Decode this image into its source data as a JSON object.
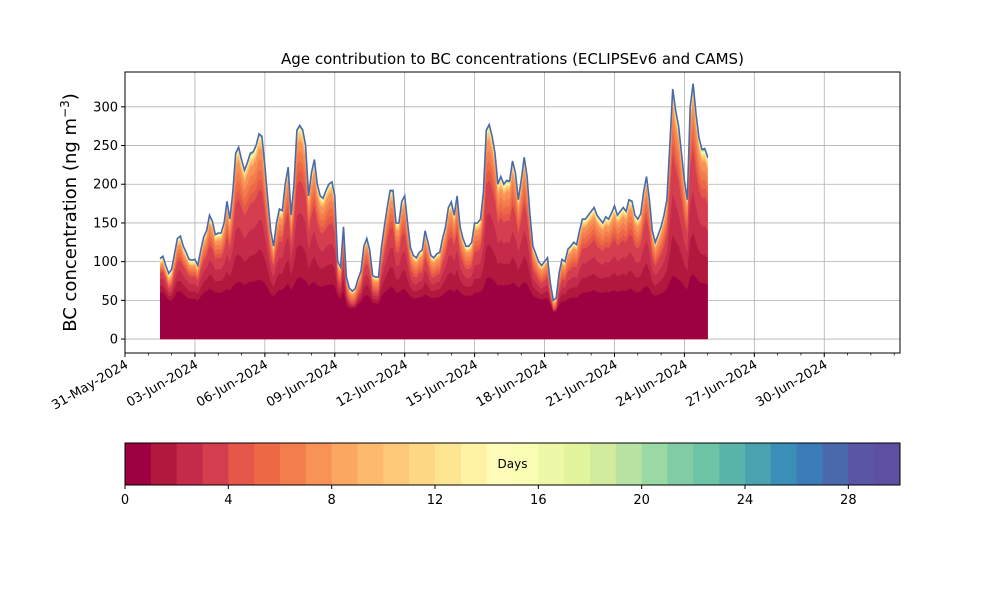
{
  "chart_data": {
    "type": "area",
    "title": "Age contribution to BC concentrations (ECLIPSEv6 and CAMS)",
    "ylabel": "BC concentration (ng m",
    "ylabel_sup": "−3",
    "ylabel_close": ")",
    "xlabel": "",
    "ylim": [
      -18,
      345
    ],
    "yticks": [
      0,
      50,
      100,
      150,
      200,
      250,
      300
    ],
    "grid": true,
    "x_tick_labels": [
      "31-May-2024",
      "03-Jun-2024",
      "06-Jun-2024",
      "09-Jun-2024",
      "12-Jun-2024",
      "15-Jun-2024",
      "18-Jun-2024",
      "21-Jun-2024",
      "24-Jun-2024",
      "27-Jun-2024",
      "30-Jun-2024"
    ],
    "x_tick_day_numbers": [
      31,
      3,
      6,
      9,
      12,
      15,
      18,
      21,
      24,
      27,
      30
    ],
    "x_range_dates": [
      "2024-05-31T00:00",
      "2024-07-03T06:00"
    ],
    "series_start": "2024-06-01T12:00",
    "series_step_hours": 3,
    "total": [
      104,
      107,
      95,
      85,
      90,
      110,
      130,
      133,
      120,
      112,
      103,
      102,
      103,
      95,
      115,
      132,
      140,
      160,
      152,
      135,
      137,
      137,
      150,
      178,
      155,
      190,
      240,
      248,
      232,
      218,
      228,
      240,
      242,
      250,
      265,
      262,
      225,
      180,
      140,
      120,
      150,
      168,
      166,
      200,
      222,
      160,
      200,
      270,
      276,
      270,
      250,
      185,
      215,
      232,
      200,
      185,
      182,
      192,
      200,
      203,
      185,
      100,
      93,
      145,
      80,
      66,
      62,
      65,
      78,
      88,
      120,
      130,
      115,
      82,
      80,
      80,
      118,
      145,
      170,
      192,
      192,
      150,
      150,
      178,
      185,
      150,
      118,
      108,
      105,
      112,
      115,
      140,
      125,
      108,
      105,
      110,
      112,
      130,
      145,
      170,
      177,
      160,
      185,
      145,
      130,
      120,
      120,
      125,
      150,
      150,
      155,
      190,
      270,
      277,
      262,
      240,
      200,
      210,
      200,
      205,
      204,
      230,
      215,
      180,
      205,
      235,
      210,
      160,
      120,
      110,
      100,
      95,
      100,
      105,
      72,
      50,
      53,
      85,
      103,
      100,
      116,
      120,
      125,
      122,
      140,
      155,
      155,
      160,
      165,
      170,
      160,
      155,
      150,
      158,
      155,
      163,
      172,
      160,
      165,
      170,
      165,
      180,
      178,
      160,
      155,
      162,
      190,
      210,
      180,
      140,
      125,
      135,
      145,
      160,
      180,
      250,
      323,
      295,
      275,
      240,
      205,
      180,
      300,
      330,
      290,
      260,
      245,
      246,
      235
    ],
    "layers": {
      "1": [
        60,
        60,
        55,
        50,
        50,
        55,
        62,
        62,
        58,
        55,
        52,
        52,
        52,
        50,
        55,
        60,
        62,
        65,
        63,
        60,
        60,
        60,
        62,
        65,
        63,
        68,
        72,
        74,
        73,
        70,
        72,
        74,
        74,
        75,
        77,
        76,
        72,
        66,
        58,
        55,
        60,
        64,
        63,
        68,
        72,
        63,
        70,
        78,
        80,
        78,
        76,
        68,
        72,
        74,
        70,
        68,
        68,
        70,
        70,
        71,
        68,
        55,
        52,
        62,
        45,
        40,
        40,
        40,
        45,
        48,
        55,
        57,
        54,
        47,
        46,
        46,
        55,
        60,
        63,
        67,
        67,
        60,
        60,
        64,
        65,
        60,
        55,
        53,
        52,
        54,
        54,
        58,
        56,
        53,
        53,
        54,
        54,
        57,
        60,
        63,
        64,
        61,
        65,
        60,
        57,
        56,
        56,
        56,
        60,
        60,
        61,
        66,
        78,
        80,
        78,
        74,
        69,
        70,
        69,
        70,
        70,
        73,
        71,
        66,
        70,
        74,
        71,
        63,
        56,
        54,
        52,
        51,
        52,
        53,
        45,
        35,
        36,
        44,
        49,
        48,
        52,
        53,
        54,
        53,
        57,
        60,
        60,
        61,
        62,
        63,
        61,
        60,
        60,
        61,
        60,
        62,
        63,
        61,
        62,
        63,
        62,
        65,
        64,
        61,
        60,
        62,
        66,
        69,
        65,
        58,
        56,
        57,
        59,
        61,
        65,
        74,
        82,
        80,
        77,
        74,
        68,
        64,
        80,
        84,
        79,
        74,
        72,
        72,
        70
      ],
      "4": [
        85,
        87,
        77,
        65,
        68,
        85,
        100,
        102,
        94,
        88,
        82,
        80,
        81,
        75,
        90,
        101,
        107,
        121,
        116,
        104,
        105,
        105,
        114,
        133,
        117,
        140,
        175,
        181,
        170,
        160,
        166,
        175,
        177,
        182,
        193,
        191,
        165,
        133,
        105,
        92,
        113,
        126,
        125,
        150,
        164,
        120,
        150,
        200,
        205,
        200,
        185,
        138,
        160,
        172,
        150,
        138,
        136,
        143,
        148,
        150,
        137,
        77,
        71,
        108,
        60,
        49,
        46,
        48,
        58,
        66,
        91,
        98,
        87,
        62,
        60,
        60,
        89,
        109,
        127,
        143,
        143,
        112,
        112,
        133,
        138,
        112,
        89,
        81,
        79,
        85,
        86,
        105,
        94,
        81,
        79,
        83,
        84,
        98,
        109,
        127,
        132,
        120,
        139,
        109,
        98,
        90,
        90,
        94,
        113,
        113,
        117,
        143,
        200,
        205,
        194,
        178,
        150,
        157,
        150,
        153,
        152,
        172,
        160,
        135,
        153,
        175,
        157,
        120,
        90,
        83,
        76,
        72,
        76,
        79,
        54,
        38,
        40,
        64,
        77,
        75,
        87,
        90,
        94,
        92,
        105,
        117,
        117,
        120,
        124,
        128,
        120,
        117,
        113,
        119,
        117,
        123,
        130,
        120,
        124,
        128,
        124,
        135,
        133,
        120,
        117,
        122,
        143,
        157,
        135,
        105,
        94,
        102,
        109,
        120,
        135,
        188,
        240,
        220,
        204,
        178,
        152,
        134,
        223,
        245,
        215,
        193,
        182,
        183,
        175
      ],
      "8": [
        95,
        98,
        87,
        75,
        80,
        100,
        120,
        122,
        110,
        103,
        95,
        94,
        95,
        87,
        106,
        122,
        130,
        148,
        141,
        125,
        127,
        127,
        139,
        165,
        144,
        176,
        222,
        230,
        215,
        202,
        211,
        222,
        224,
        232,
        246,
        243,
        209,
        167,
        130,
        111,
        139,
        156,
        154,
        186,
        206,
        148,
        185,
        250,
        256,
        250,
        232,
        172,
        200,
        215,
        185,
        172,
        169,
        178,
        186,
        189,
        172,
        93,
        86,
        134,
        74,
        61,
        57,
        60,
        72,
        82,
        111,
        121,
        107,
        76,
        74,
        74,
        110,
        135,
        158,
        178,
        178,
        140,
        140,
        166,
        172,
        140,
        110,
        101,
        98,
        104,
        107,
        130,
        116,
        101,
        98,
        102,
        104,
        121,
        135,
        158,
        164,
        149,
        172,
        135,
        121,
        112,
        112,
        116,
        140,
        140,
        144,
        177,
        251,
        257,
        243,
        223,
        186,
        195,
        186,
        191,
        190,
        214,
        200,
        168,
        191,
        219,
        195,
        149,
        112,
        102,
        93,
        88,
        93,
        98,
        67,
        46,
        49,
        79,
        96,
        93,
        108,
        112,
        117,
        114,
        130,
        144,
        144,
        149,
        153,
        158,
        149,
        144,
        140,
        147,
        144,
        151,
        160,
        149,
        153,
        158,
        153,
        167,
        166,
        149,
        144,
        151,
        177,
        196,
        168,
        130,
        116,
        126,
        135,
        149,
        168,
        232,
        300,
        275,
        256,
        223,
        191,
        168,
        279,
        307,
        270,
        242,
        228,
        229,
        219
      ],
      "12": [
        100,
        103,
        91,
        81,
        86,
        106,
        126,
        129,
        116,
        108,
        99,
        98,
        99,
        91,
        111,
        128,
        136,
        155,
        147,
        131,
        133,
        133,
        146,
        173,
        151,
        185,
        233,
        241,
        225,
        212,
        222,
        233,
        235,
        243,
        258,
        255,
        219,
        175,
        136,
        116,
        146,
        163,
        161,
        195,
        216,
        155,
        195,
        263,
        269,
        263,
        243,
        180,
        209,
        226,
        195,
        180,
        177,
        187,
        195,
        198,
        180,
        97,
        90,
        141,
        78,
        64,
        60,
        63,
        76,
        86,
        116,
        126,
        111,
        80,
        78,
        78,
        115,
        141,
        165,
        187,
        187,
        146,
        146,
        173,
        180,
        146,
        115,
        105,
        102,
        109,
        111,
        136,
        121,
        105,
        102,
        107,
        109,
        126,
        141,
        165,
        172,
        155,
        180,
        141,
        126,
        116,
        116,
        121,
        146,
        146,
        151,
        185,
        263,
        270,
        255,
        233,
        195,
        204,
        195,
        199,
        198,
        224,
        209,
        175,
        199,
        229,
        204,
        155,
        116,
        107,
        97,
        92,
        97,
        102,
        70,
        48,
        51,
        82,
        100,
        97,
        113,
        116,
        121,
        118,
        136,
        151,
        151,
        155,
        160,
        165,
        155,
        151,
        146,
        153,
        151,
        158,
        167,
        155,
        160,
        165,
        160,
        175,
        173,
        155,
        151,
        158,
        185,
        204,
        175,
        136,
        121,
        131,
        141,
        155,
        175,
        243,
        314,
        287,
        267,
        233,
        199,
        175,
        292,
        321,
        282,
        253,
        238,
        239,
        228
      ],
      "20": [
        103,
        106,
        94,
        84,
        89,
        109,
        129,
        132,
        119,
        111,
        102,
        101,
        102,
        94,
        114,
        131,
        139,
        159,
        151,
        134,
        136,
        136,
        149,
        177,
        154,
        189,
        238,
        246,
        230,
        216,
        226,
        238,
        240,
        248,
        263,
        260,
        223,
        179,
        139,
        119,
        149,
        167,
        165,
        199,
        220,
        159,
        199,
        268,
        274,
        268,
        248,
        184,
        213,
        230,
        199,
        184,
        181,
        191,
        199,
        202,
        184,
        99,
        92,
        144,
        79,
        65,
        61,
        64,
        77,
        87,
        119,
        129,
        114,
        81,
        79,
        79,
        117,
        144,
        169,
        190,
        190,
        149,
        149,
        177,
        184,
        149,
        117,
        107,
        104,
        111,
        114,
        139,
        124,
        107,
        104,
        109,
        111,
        129,
        144,
        169,
        176,
        159,
        184,
        144,
        129,
        119,
        119,
        124,
        149,
        149,
        154,
        189,
        268,
        275,
        260,
        238,
        199,
        208,
        199,
        203,
        202,
        228,
        213,
        179,
        203,
        233,
        208,
        159,
        119,
        109,
        99,
        94,
        99,
        104,
        71,
        49,
        52,
        84,
        102,
        99,
        115,
        119,
        124,
        121,
        139,
        154,
        154,
        159,
        164,
        169,
        159,
        154,
        149,
        157,
        154,
        162,
        171,
        159,
        164,
        169,
        164,
        179,
        177,
        159,
        154,
        161,
        189,
        208,
        179,
        139,
        124,
        134,
        144,
        159,
        179,
        248,
        320,
        292,
        272,
        238,
        203,
        179,
        297,
        327,
        287,
        258,
        243,
        244,
        233
      ]
    },
    "layer_ages_days": [
      1,
      4,
      8,
      12,
      20,
      30
    ],
    "colorbar": {
      "label": "Days",
      "min": 0,
      "max": 30,
      "ticks": [
        0,
        4,
        8,
        12,
        16,
        20,
        24,
        28
      ],
      "colors": [
        "#9e0142",
        "#b2183e",
        "#c52a4b",
        "#d53e4f",
        "#e55749",
        "#ee6a47",
        "#f47d4d",
        "#f89256",
        "#fca761",
        "#fdba6c",
        "#fec978",
        "#fed885",
        "#fee592",
        "#fff2a5",
        "#fffbb8",
        "#f9fcb3",
        "#eef8a7",
        "#e2f49c",
        "#d1ec9c",
        "#b7e2a1",
        "#9ad8a4",
        "#80cda5",
        "#6cc3a5",
        "#59b4aa",
        "#4aa2b1",
        "#3a8fb8",
        "#3b7cb8",
        "#4a69ad",
        "#5a55a4",
        "#5e4fa2"
      ]
    }
  }
}
